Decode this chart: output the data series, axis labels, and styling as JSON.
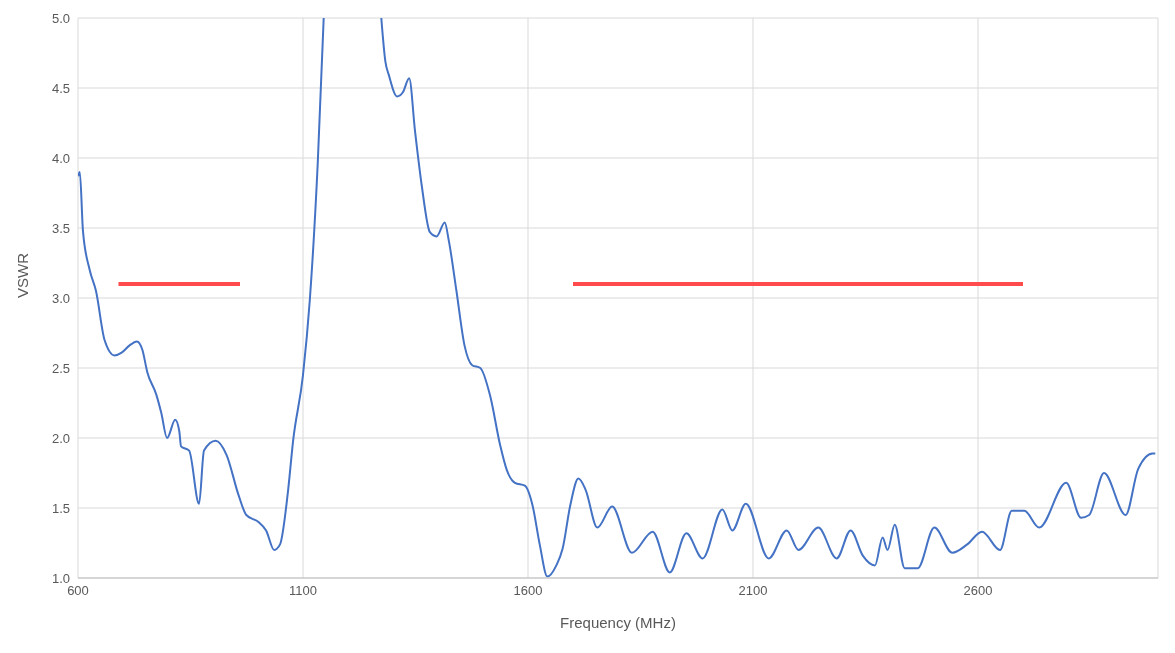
{
  "chart_data": {
    "type": "line",
    "xlabel": "Frequency (MHz)",
    "ylabel": "VSWR",
    "xlim": [
      600,
      3000
    ],
    "ylim": [
      1,
      5
    ],
    "xticks": [
      600,
      1100,
      1600,
      2100,
      2600
    ],
    "yticks": [
      {
        "value": 1,
        "label": "1.0"
      },
      {
        "value": 1.5,
        "label": "1.5"
      },
      {
        "value": 2,
        "label": "2.0"
      },
      {
        "value": 2.5,
        "label": "2.5"
      },
      {
        "value": 3,
        "label": "3.0"
      },
      {
        "value": 3.5,
        "label": "3.5"
      },
      {
        "value": 4,
        "label": "4.0"
      },
      {
        "value": 4.5,
        "label": "4.5"
      },
      {
        "value": 5,
        "label": "5.0"
      }
    ],
    "grid": true,
    "marker": "none",
    "line_style": "solid",
    "series": [
      {
        "color": "#4472c4",
        "x": [
          600,
          604,
          611,
          626,
          640,
          659,
          681,
          697,
          714,
          731,
          743,
          754,
          774,
          785,
          798,
          816,
          825,
          829,
          847,
          869,
          880,
          906,
          930,
          957,
          974,
          1001,
          1018,
          1036,
          1049,
          1067,
          1078,
          1100,
          1115,
          1133,
          1146,
          1210,
          1274,
          1283,
          1291,
          1309,
          1322,
          1336,
          1349,
          1364,
          1382,
          1397,
          1415,
          1424,
          1441,
          1459,
          1476,
          1494,
          1516,
          1538,
          1553,
          1571,
          1593,
          1610,
          1626,
          1643,
          1663,
          1677,
          1694,
          1712,
          1728,
          1754,
          1787,
          1831,
          1877,
          1915,
          1952,
          1988,
          2032,
          2054,
          2084,
          2135,
          2175,
          2201,
          2245,
          2286,
          2317,
          2344,
          2371,
          2388,
          2399,
          2415,
          2437,
          2466,
          2503,
          2543,
          2576,
          2609,
          2649,
          2675,
          2703,
          2736,
          2796,
          2829,
          2847,
          2880,
          2928,
          2956,
          2988,
          2994
        ],
        "values": [
          3.87,
          3.9,
          3.48,
          3.2,
          3.05,
          2.7,
          2.59,
          2.61,
          2.66,
          2.69,
          2.63,
          2.47,
          2.31,
          2.18,
          2.0,
          2.13,
          2.05,
          1.94,
          1.91,
          1.53,
          1.91,
          1.98,
          1.88,
          1.59,
          1.45,
          1.4,
          1.34,
          1.2,
          1.24,
          1.63,
          1.98,
          2.45,
          2.98,
          3.98,
          5.0,
          null,
          5.0,
          4.69,
          4.59,
          4.44,
          4.47,
          4.57,
          4.19,
          3.8,
          3.47,
          3.44,
          3.54,
          3.41,
          3.05,
          2.66,
          2.52,
          2.5,
          2.3,
          1.95,
          1.77,
          1.68,
          1.66,
          1.52,
          1.24,
          1.01,
          1.09,
          1.21,
          1.52,
          1.71,
          1.63,
          1.36,
          1.51,
          1.18,
          1.33,
          1.04,
          1.32,
          1.14,
          1.49,
          1.34,
          1.53,
          1.14,
          1.34,
          1.2,
          1.36,
          1.14,
          1.34,
          1.16,
          1.09,
          1.29,
          1.2,
          1.38,
          1.07,
          1.07,
          1.36,
          1.18,
          1.24,
          1.33,
          1.2,
          1.48,
          1.48,
          1.36,
          1.68,
          1.43,
          1.45,
          1.75,
          1.45,
          1.78,
          1.89,
          1.89
        ]
      },
      {
        "color": "#ff4b4b",
        "x": [
          690,
          960
        ],
        "values": [
          3.1,
          3.1
        ]
      },
      {
        "color": "#ff4b4b",
        "x": [
          1700,
          2700
        ],
        "values": [
          3.1,
          3.1
        ]
      }
    ]
  }
}
